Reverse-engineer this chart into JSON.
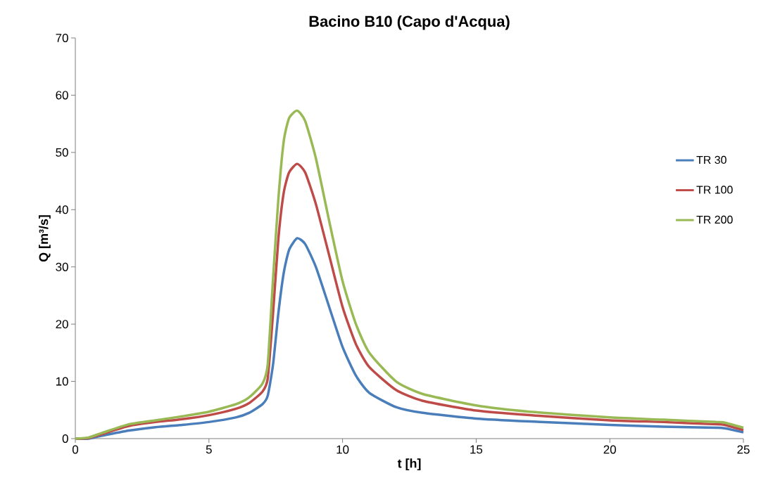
{
  "chart_data": {
    "type": "line",
    "title": "Bacino B10 (Capo d'Acqua)",
    "xlabel": "t [h]",
    "ylabel": "Q [m³/s]",
    "x": [
      0,
      0.5,
      1,
      2,
      3,
      4,
      5,
      6,
      6.5,
      7,
      7.2,
      7.4,
      7.6,
      7.8,
      8,
      8.3,
      8.6,
      9,
      9.5,
      10,
      10.5,
      11,
      12,
      13,
      15,
      17,
      20,
      22,
      24,
      24.3,
      25
    ],
    "series": [
      {
        "name": "TR 30",
        "color": "#4a7ebb",
        "values": [
          0,
          0,
          0.5,
          1.4,
          2.0,
          2.4,
          2.9,
          3.7,
          4.5,
          6,
          7.5,
          13,
          22,
          29,
          33,
          35,
          34,
          30,
          23,
          16,
          11,
          8,
          5.5,
          4.5,
          3.5,
          3,
          2.4,
          2.1,
          1.9,
          1.8,
          1.1
        ]
      },
      {
        "name": "TR 100",
        "color": "#be4b48",
        "values": [
          0,
          0.1,
          0.8,
          2.2,
          2.9,
          3.4,
          4.1,
          5.2,
          6.2,
          8.2,
          10.5,
          22,
          35,
          43,
          46.5,
          48,
          46.5,
          41,
          32,
          23,
          16.5,
          12.5,
          8.5,
          6.6,
          4.9,
          4.1,
          3.2,
          2.9,
          2.5,
          2.4,
          1.5
        ]
      },
      {
        "name": "TR 200",
        "color": "#98b954",
        "values": [
          0,
          0.2,
          1.0,
          2.5,
          3.2,
          3.9,
          4.7,
          6.0,
          7.2,
          9.6,
          13,
          28,
          42,
          52,
          56,
          57.3,
          55.5,
          49,
          38,
          27.5,
          20,
          15,
          10,
          7.8,
          5.8,
          4.7,
          3.7,
          3.3,
          2.9,
          2.8,
          1.9
        ]
      }
    ],
    "xlim": [
      0,
      25
    ],
    "xticks": [
      0,
      5,
      10,
      15,
      20,
      25
    ],
    "ylim": [
      0,
      70
    ],
    "yticks": [
      0,
      10,
      20,
      30,
      40,
      50,
      60,
      70
    ],
    "grid": false,
    "legend": "right",
    "marker": "none",
    "line_style": "solid"
  }
}
